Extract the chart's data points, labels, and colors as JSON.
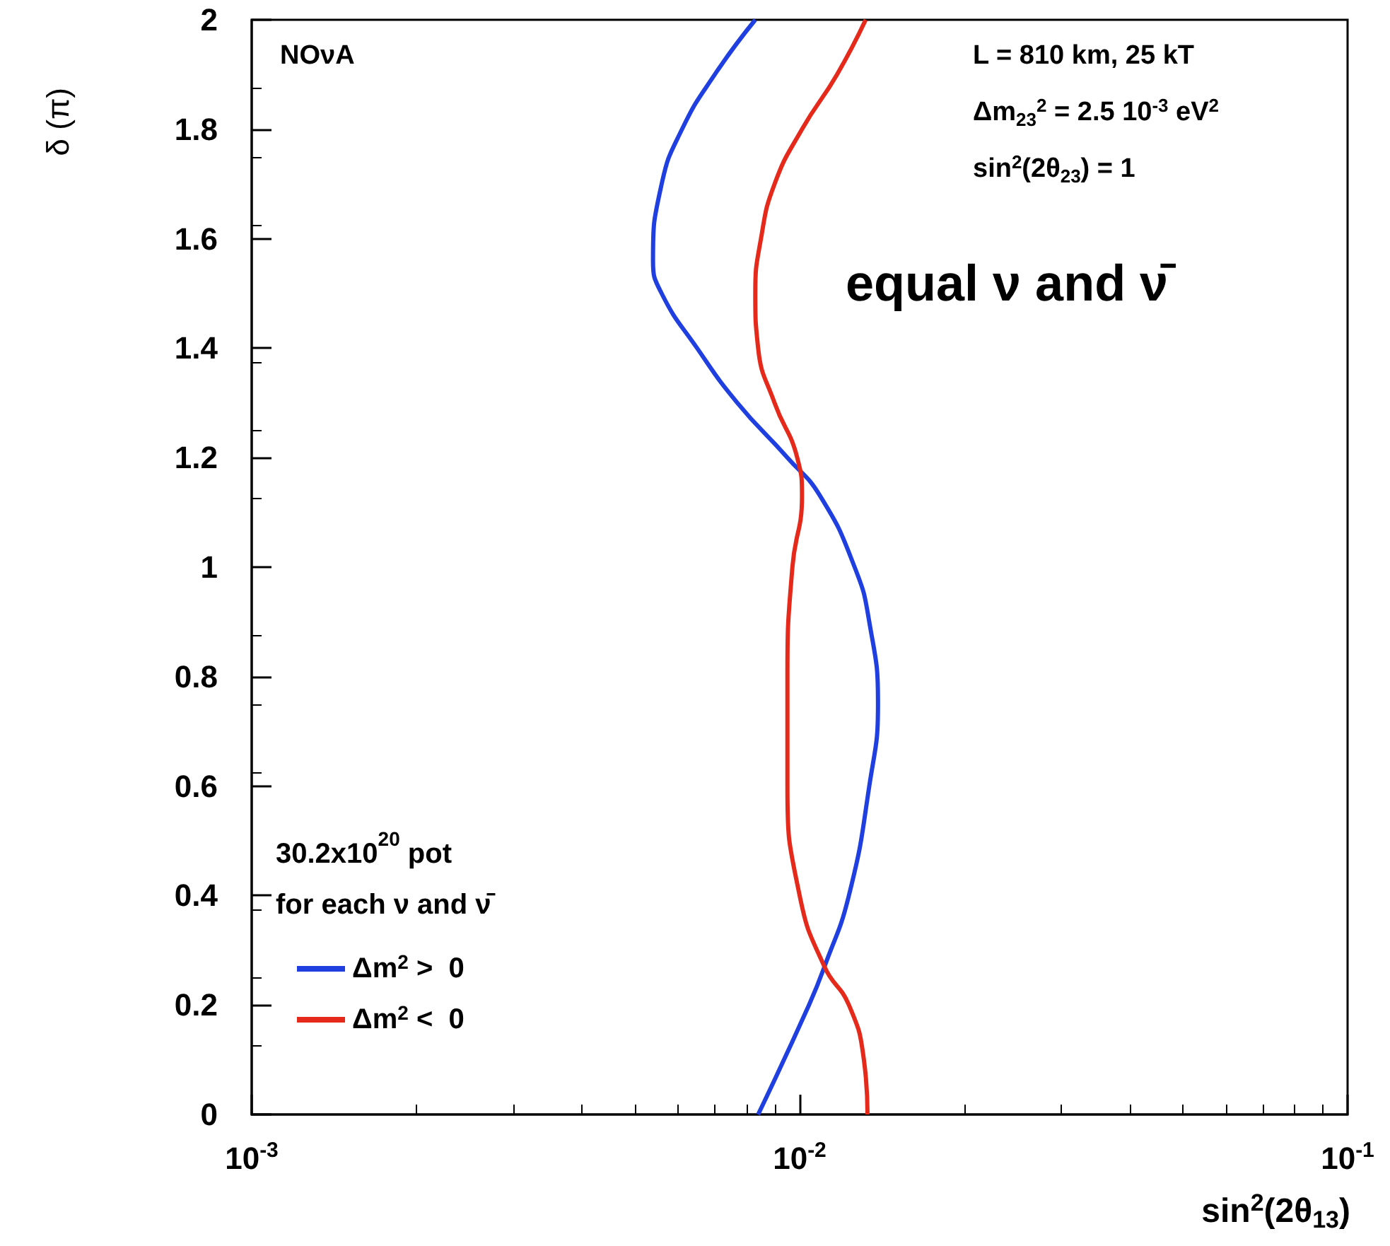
{
  "chart_data": {
    "type": "line",
    "xlabel": "sin$^{2}$(2θ$_{13}$)",
    "ylabel": "δ (π)",
    "log": "x",
    "xlim": [
      0.001,
      0.1
    ],
    "xticks": [
      {
        "value": 0.001,
        "label": "10$^{-3}$"
      },
      {
        "value": 0.01,
        "label": "10$^{-2}$"
      },
      {
        "value": 0.1,
        "label": "10$^{-1}$"
      }
    ],
    "ylim": [
      0,
      2
    ],
    "yticks": [
      0,
      0.2,
      0.4,
      0.6,
      0.8,
      1,
      1.2,
      1.4,
      1.6,
      1.8,
      2
    ],
    "grid": false,
    "legend": "bottom left",
    "marker": "none",
    "line_style": "solid",
    "legend_title": "30.2x10$^{20}$ pot\nfor each ν and ν̄",
    "annotations": [
      "NOνA",
      "L = 810 km, 25 kT",
      "Δm$_{23}$$^{2}$ = 2.5 10$^{-3}$ eV$^{2}$",
      "sin$^{2}$(2θ$_{23}$) = 1",
      "equal ν and ν̄"
    ],
    "series": [
      {
        "name": "Δm$^{2}$ >  0",
        "color": "#1f3fe0",
        "x": [
          0.0084,
          0.0104,
          0.0111,
          0.0123,
          0.0134,
          0.0139,
          0.0134,
          0.0126,
          0.0109,
          0.0095,
          0.0077,
          0.0065,
          0.0056,
          0.0054,
          0.0056,
          0.0061,
          0.007,
          0.0083
        ],
        "values": [
          0,
          0.2,
          0.27,
          0.4,
          0.6,
          0.75,
          0.9,
          1.0,
          1.13,
          1.2,
          1.3,
          1.4,
          1.5,
          1.56,
          1.7,
          1.8,
          1.9,
          2.0
        ]
      },
      {
        "name": "Δm$^{2}$ <  0",
        "color": "#e52a1c",
        "x": [
          0.0133,
          0.0131,
          0.0123,
          0.0111,
          0.01,
          0.0095,
          0.0095,
          0.0097,
          0.0101,
          0.0099,
          0.009,
          0.0084,
          0.0083,
          0.0085,
          0.009,
          0.0101,
          0.0117,
          0.0132
        ],
        "values": [
          0,
          0.1,
          0.2,
          0.27,
          0.4,
          0.6,
          0.8,
          1.0,
          1.13,
          1.2,
          1.3,
          1.4,
          1.5,
          1.6,
          1.7,
          1.8,
          1.9,
          2.0
        ]
      }
    ]
  }
}
